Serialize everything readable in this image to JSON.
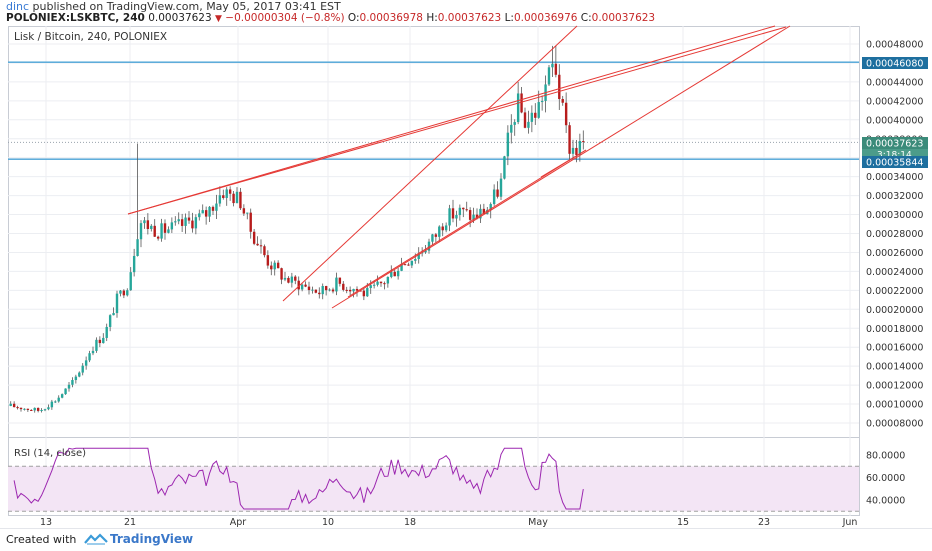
{
  "header": {
    "user": "dinc",
    "published_text": " published on TradingView.com, May 05, 2017 03:41 EST",
    "symbol": "POLONIEX:LSKBTC, 240",
    "last": "0.00037623",
    "change": "−0.00000304 (−0.8%)",
    "o_label": "O:",
    "o_value": "0.00036978",
    "h_label": "H:",
    "h_value": "0.00037623",
    "l_label": "L:",
    "l_value": "0.00036976",
    "c_label": "C:",
    "c_value": "0.00037623"
  },
  "chart": {
    "legend": "Lisk / Bitcoin, 240, POLONIEX",
    "price_ticks": [
      "0.00048000",
      "0.00046000",
      "0.00044000",
      "0.00042000",
      "0.00040000",
      "0.00038000",
      "0.00036000",
      "0.00034000",
      "0.00032000",
      "0.00030000",
      "0.00028000",
      "0.00026000",
      "0.00024000",
      "0.00022000",
      "0.00020000",
      "0.00018000",
      "0.00016000",
      "0.00014000",
      "0.00012000",
      "0.00010000",
      "0.00008000"
    ],
    "badges": {
      "upper_line": "0.00046080",
      "current_price": "0.00037623",
      "countdown": "3:18:14",
      "lower_line": "0.00035844"
    },
    "rsi_label": "RSI (14, close)",
    "rsi_ticks": [
      "80.0000",
      "60.0000",
      "40.0000"
    ],
    "time_ticks": [
      "13",
      "21",
      "Apr",
      "10",
      "18",
      "May",
      "15",
      "23",
      "Jun"
    ],
    "colors": {
      "up": "#26a69a",
      "down": "#b71c1c",
      "trend": "#e53935",
      "hline": "#4aa3d6",
      "rsi": "#9c27b0",
      "rsi_band": "#f3e5f5"
    }
  },
  "footer": {
    "created_with": "Created with",
    "brand": "TradingView"
  },
  "chart_data": {
    "type": "candlestick",
    "title": "Lisk / Bitcoin, 240, POLONIEX",
    "ylim": [
      7e-05,
      0.0005
    ],
    "x_ticks": [
      "13",
      "21",
      "Apr",
      "10",
      "18",
      "May",
      "15",
      "23",
      "Jun"
    ],
    "price_path": [
      [
        0,
        9.8e-05
      ],
      [
        0.05,
        9.3e-05
      ],
      [
        0.08,
        0.000105
      ],
      [
        0.11,
        0.000124
      ],
      [
        0.14,
        0.000158
      ],
      [
        0.165,
        0.000175
      ],
      [
        0.185,
        0.00021
      ],
      [
        0.205,
        0.000228
      ],
      [
        0.225,
        0.000293
      ],
      [
        0.26,
        0.000282
      ],
      [
        0.3,
        0.000289
      ],
      [
        0.34,
        0.0003
      ],
      [
        0.37,
        0.000325
      ],
      [
        0.4,
        0.000316
      ],
      [
        0.42,
        0.000282
      ],
      [
        0.45,
        0.00025
      ],
      [
        0.48,
        0.000232
      ],
      [
        0.51,
        0.000225
      ],
      [
        0.54,
        0.000218
      ],
      [
        0.57,
        0.000228
      ],
      [
        0.6,
        0.000222
      ],
      [
        0.62,
        0.000216
      ],
      [
        0.65,
        0.000228
      ],
      [
        0.68,
        0.000247
      ],
      [
        0.71,
        0.000258
      ],
      [
        0.74,
        0.000276
      ],
      [
        0.76,
        0.000297
      ],
      [
        0.785,
        0.000303
      ],
      [
        0.81,
        0.000297
      ],
      [
        0.835,
        0.000308
      ],
      [
        0.855,
        0.00033
      ],
      [
        0.87,
        0.000382
      ],
      [
        0.885,
        0.000418
      ],
      [
        0.9,
        0.000396
      ],
      [
        0.92,
        0.000411
      ],
      [
        0.935,
        0.000438
      ],
      [
        0.95,
        0.000462
      ],
      [
        0.96,
        0.00042
      ],
      [
        0.975,
        0.000372
      ],
      [
        0.99,
        0.000368
      ],
      [
        1,
        0.000376
      ]
    ],
    "horizontal_levels": [
      0.0004608,
      0.00035844
    ],
    "rsi": {
      "period": 14,
      "levels": [
        70,
        30
      ],
      "last": 47
    }
  }
}
